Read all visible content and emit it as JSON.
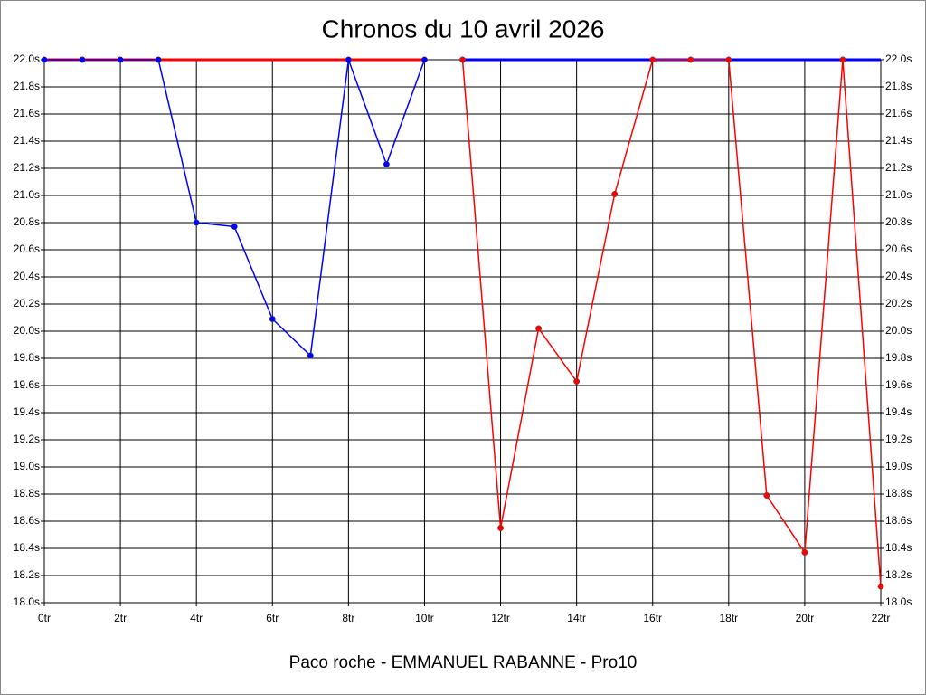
{
  "chart_data": {
    "type": "line",
    "title": "Chronos du 10 avril 2026",
    "x_label": "Paco roche - EMMANUEL RABANNE - Pro10",
    "x": [
      0,
      1,
      2,
      3,
      4,
      5,
      6,
      7,
      8,
      9,
      10,
      11,
      12,
      13,
      14,
      15,
      16,
      17,
      18,
      19,
      20,
      21,
      22
    ],
    "xlim": [
      0,
      22
    ],
    "xticks": [
      {
        "value": 0,
        "label": "0tr"
      },
      {
        "value": 2,
        "label": "2tr"
      },
      {
        "value": 4,
        "label": "4tr"
      },
      {
        "value": 6,
        "label": "6tr"
      },
      {
        "value": 8,
        "label": "8tr"
      },
      {
        "value": 10,
        "label": "10tr"
      },
      {
        "value": 12,
        "label": "12tr"
      },
      {
        "value": 14,
        "label": "14tr"
      },
      {
        "value": 16,
        "label": "16tr"
      },
      {
        "value": 18,
        "label": "18tr"
      },
      {
        "value": 20,
        "label": "20tr"
      },
      {
        "value": 22,
        "label": "22tr"
      }
    ],
    "ylim": [
      18.0,
      22.0
    ],
    "yticks": [
      {
        "value": 18.0,
        "label": "18.0s"
      },
      {
        "value": 18.2,
        "label": "18.2s"
      },
      {
        "value": 18.4,
        "label": "18.4s"
      },
      {
        "value": 18.6,
        "label": "18.6s"
      },
      {
        "value": 18.8,
        "label": "18.8s"
      },
      {
        "value": 19.0,
        "label": "19.0s"
      },
      {
        "value": 19.2,
        "label": "19.2s"
      },
      {
        "value": 19.4,
        "label": "19.4s"
      },
      {
        "value": 19.6,
        "label": "19.6s"
      },
      {
        "value": 19.8,
        "label": "19.8s"
      },
      {
        "value": 20.0,
        "label": "20.0s"
      },
      {
        "value": 20.2,
        "label": "20.2s"
      },
      {
        "value": 20.4,
        "label": "20.4s"
      },
      {
        "value": 20.6,
        "label": "20.6s"
      },
      {
        "value": 20.8,
        "label": "20.8s"
      },
      {
        "value": 21.0,
        "label": "21.0s"
      },
      {
        "value": 21.2,
        "label": "21.2s"
      },
      {
        "value": 21.4,
        "label": "21.4s"
      },
      {
        "value": 21.6,
        "label": "21.6s"
      },
      {
        "value": 21.8,
        "label": "21.8s"
      },
      {
        "value": 22.0,
        "label": "22.0s"
      }
    ],
    "grid": true,
    "series": [
      {
        "color": "#ff0000",
        "markers": false,
        "values": [
          22,
          22,
          22,
          22,
          22,
          22,
          22,
          22,
          22,
          22,
          22,
          null,
          null,
          null,
          null,
          null,
          null,
          null,
          null,
          null,
          null,
          null,
          null
        ]
      },
      {
        "color": "#0000ff",
        "markers": false,
        "values": [
          null,
          null,
          null,
          null,
          null,
          null,
          null,
          null,
          null,
          null,
          null,
          22,
          22,
          22,
          22,
          22,
          22,
          22,
          22,
          22,
          22,
          22,
          22
        ]
      },
      {
        "color": "#0000ff",
        "markers": true,
        "values": [
          22,
          22,
          22,
          22,
          20.8,
          20.77,
          20.09,
          19.82,
          22,
          21.23,
          22,
          null,
          null,
          null,
          null,
          null,
          null,
          null,
          null,
          null,
          null,
          null,
          null
        ]
      },
      {
        "color": "#ff0000",
        "markers": true,
        "values": [
          null,
          null,
          null,
          null,
          null,
          null,
          null,
          null,
          null,
          null,
          null,
          22,
          18.55,
          20.02,
          19.63,
          21.01,
          22,
          22,
          22,
          18.79,
          18.37,
          22,
          18.12
        ]
      }
    ]
  }
}
